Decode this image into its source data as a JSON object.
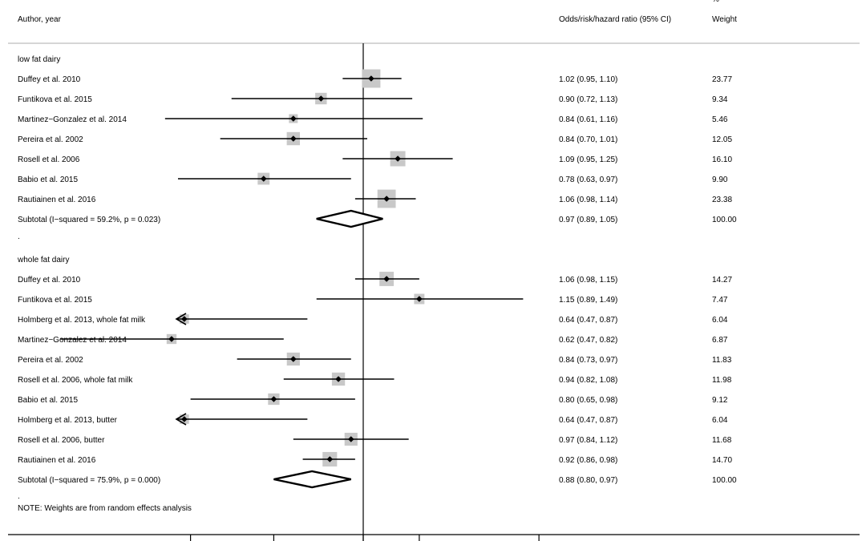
{
  "header": {
    "author_label": "Author, year",
    "ratio_label": "Odds/risk/hazard ratio (95% CI)",
    "weight_pct": "%",
    "weight_label": "Weight"
  },
  "note": "NOTE: Weights are from random effects analysis",
  "separator_dot": ".",
  "chart_data": {
    "type": "forest",
    "title": "",
    "xlabel": "",
    "ylabel": "",
    "null_line": 1,
    "x_scale": "log",
    "xlim": [
      0.4,
      2.5
    ],
    "groups": [
      {
        "name": "low fat dairy",
        "studies": [
          {
            "label": "Duffey et al. 2010",
            "est": 1.02,
            "lo": 0.95,
            "hi": 1.1,
            "ci": "1.02 (0.95, 1.10)",
            "weight": "23.77"
          },
          {
            "label": "Funtikova et al. 2015",
            "est": 0.9,
            "lo": 0.72,
            "hi": 1.13,
            "ci": "0.90 (0.72, 1.13)",
            "weight": "9.34"
          },
          {
            "label": "Martinez−Gonzalez et al. 2014",
            "est": 0.84,
            "lo": 0.61,
            "hi": 1.16,
            "ci": "0.84 (0.61, 1.16)",
            "weight": "5.46"
          },
          {
            "label": "Pereira et al. 2002",
            "est": 0.84,
            "lo": 0.7,
            "hi": 1.01,
            "ci": "0.84 (0.70, 1.01)",
            "weight": "12.05"
          },
          {
            "label": "Rosell et al. 2006",
            "est": 1.09,
            "lo": 0.95,
            "hi": 1.25,
            "ci": "1.09 (0.95, 1.25)",
            "weight": "16.10"
          },
          {
            "label": "Babio et al. 2015",
            "est": 0.78,
            "lo": 0.63,
            "hi": 0.97,
            "ci": "0.78 (0.63, 0.97)",
            "weight": "9.90"
          },
          {
            "label": "Rautiainen et al. 2016",
            "est": 1.06,
            "lo": 0.98,
            "hi": 1.14,
            "ci": "1.06 (0.98, 1.14)",
            "weight": "23.38"
          }
        ],
        "subtotal": {
          "label": "Subtotal  (I−squared = 59.2%, p = 0.023)",
          "est": 0.97,
          "lo": 0.89,
          "hi": 1.05,
          "ci": "0.97 (0.89, 1.05)",
          "weight": "100.00"
        }
      },
      {
        "name": "whole fat dairy",
        "studies": [
          {
            "label": "Duffey et al. 2010",
            "est": 1.06,
            "lo": 0.98,
            "hi": 1.15,
            "ci": "1.06 (0.98, 1.15)",
            "weight": "14.27"
          },
          {
            "label": "Funtikova et al. 2015",
            "est": 1.15,
            "lo": 0.89,
            "hi": 1.49,
            "ci": "1.15 (0.89, 1.49)",
            "weight": "7.47"
          },
          {
            "label": "Holmberg et al. 2013, whole fat milk",
            "est": 0.64,
            "lo": 0.47,
            "hi": 0.87,
            "ci": "0.64 (0.47, 0.87)",
            "weight": "6.04",
            "arrow_left": true
          },
          {
            "label": "Martinez−Gonzalez et al. 2014",
            "est": 0.62,
            "lo": 0.47,
            "hi": 0.82,
            "ci": "0.62 (0.47, 0.82)",
            "weight": "6.87"
          },
          {
            "label": "Pereira et al. 2002",
            "est": 0.84,
            "lo": 0.73,
            "hi": 0.97,
            "ci": "0.84 (0.73, 0.97)",
            "weight": "11.83"
          },
          {
            "label": "Rosell et al. 2006, whole fat milk",
            "est": 0.94,
            "lo": 0.82,
            "hi": 1.08,
            "ci": "0.94 (0.82, 1.08)",
            "weight": "11.98"
          },
          {
            "label": "Babio et al. 2015",
            "est": 0.8,
            "lo": 0.65,
            "hi": 0.98,
            "ci": "0.80 (0.65, 0.98)",
            "weight": "9.12"
          },
          {
            "label": "Holmberg et al. 2013, butter",
            "est": 0.64,
            "lo": 0.47,
            "hi": 0.87,
            "ci": "0.64 (0.47, 0.87)",
            "weight": "6.04",
            "arrow_left": true
          },
          {
            "label": "Rosell et al. 2006, butter",
            "est": 0.97,
            "lo": 0.84,
            "hi": 1.12,
            "ci": "0.97 (0.84, 1.12)",
            "weight": "11.68"
          },
          {
            "label": "Rautiainen et al. 2016",
            "est": 0.92,
            "lo": 0.86,
            "hi": 0.98,
            "ci": "0.92 (0.86, 0.98)",
            "weight": "14.70"
          }
        ],
        "subtotal": {
          "label": "Subtotal  (I−squared = 75.9%, p = 0.000)",
          "est": 0.88,
          "lo": 0.8,
          "hi": 0.97,
          "ci": "0.88 (0.80, 0.97)",
          "weight": "100.00"
        }
      }
    ]
  }
}
